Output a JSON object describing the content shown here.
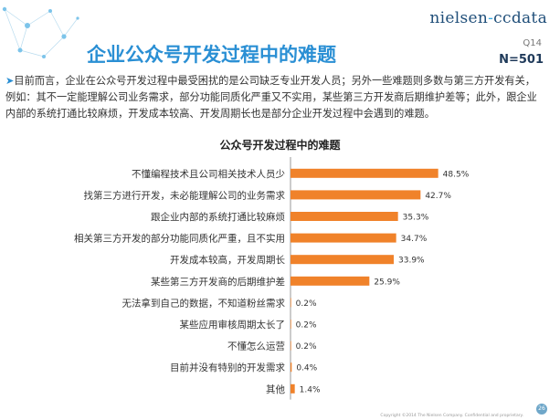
{
  "brand": {
    "name_a": "nielsen",
    "name_sep": "-",
    "name_b": "ccdata"
  },
  "header": {
    "title": "企业公众号开发过程中的难题",
    "question_code": "Q14",
    "sample_size": "N=501"
  },
  "intro": {
    "arrow": "➤",
    "text": "目前而言，企业在公众号开发过程中最受困扰的是公司缺乏专业开发人员；另外一些难题则多数与第三方开发有关，例如：其不一定能理解公司业务需求，部分功能同质化严重又不实用，某些第三方开发商后期维护差等；此外，跟企业内部的系统打通比较麻烦，开发成本较高、开发周期长也是部分企业开发过程中会遇到的难题。"
  },
  "footer": {
    "copyright": "Copyright ©2014 The Nielsen Company. Confidential and proprietary.",
    "page": "26"
  },
  "colors": {
    "bar": "#f0822a",
    "title": "#2a8fd4",
    "brand": "#1f4e79",
    "axis": "#999999"
  },
  "chart_data": {
    "type": "bar",
    "orientation": "horizontal",
    "title": "公众号开发过程中的难题",
    "categories": [
      "不懂编程技术且公司相关技术人员少",
      "找第三方进行开发，未必能理解公司的业务需求",
      "跟企业内部的系统打通比较麻烦",
      "相关第三方开发的部分功能同质化严重，且不实用",
      "开发成本较高，开发周期长",
      "某些第三方开发商的后期维护差",
      "无法拿到自己的数据，不知道粉丝需求",
      "某些应用审核周期太长了",
      "不懂怎么运营",
      "目前并没有特别的开发需求",
      "其他"
    ],
    "values": [
      48.5,
      42.7,
      35.3,
      34.7,
      33.9,
      25.9,
      0.2,
      0.2,
      0.2,
      0.4,
      1.4
    ],
    "value_labels": [
      "48.5%",
      "42.7%",
      "35.3%",
      "34.7%",
      "33.9%",
      "25.9%",
      "0.2%",
      "0.2%",
      "0.2%",
      "0.4%",
      "1.4%"
    ],
    "xlim": [
      0,
      60
    ],
    "grid": false,
    "legend": "none"
  }
}
